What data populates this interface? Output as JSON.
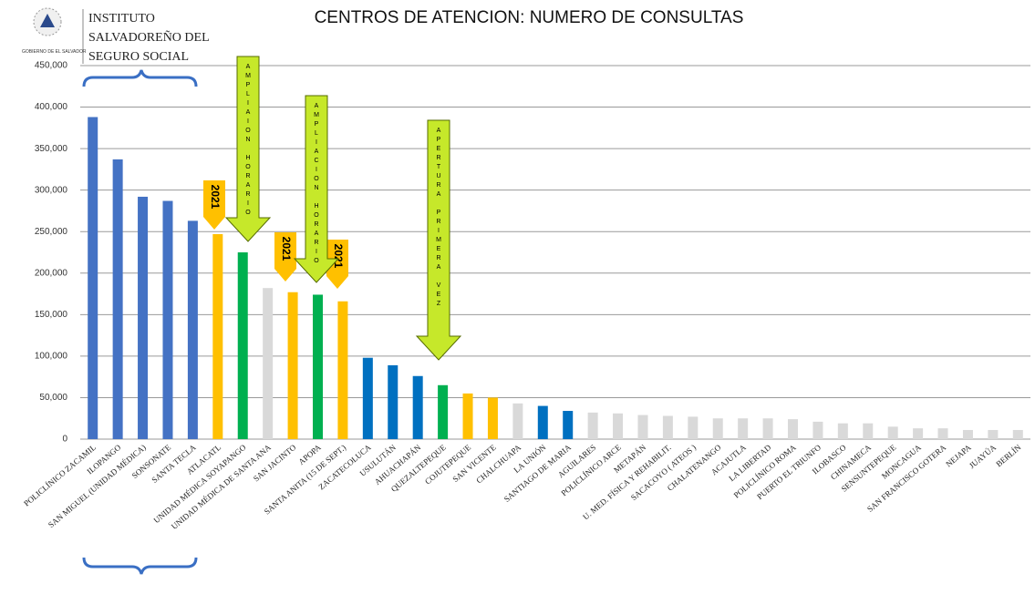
{
  "chart_data": {
    "type": "bar",
    "title": "CENTROS DE ATENCION: NUMERO DE CONSULTAS",
    "header": [
      "INSTITUTO",
      "SALVADOREÑO DEL",
      "SEGURO SOCIAL"
    ],
    "logo_caption": "GOBIERNO DE EL SALVADOR",
    "categories": [
      "POLICLÍNICO  ZACAMIL",
      "ILOPANGO",
      "SAN MIGUEL (UNIDAD MÉDICA)",
      "SONSONATE",
      "SANTA TECLA",
      "ATLACATL",
      "UNIDAD MÉDICA SOYAPANGO",
      "UNIDAD MÉDICA DE SANTA ANA",
      "SAN JACINTO",
      "APOPA",
      "SANTA ANITA (15 DE SEPT.)",
      "ZACATECOLUCA",
      "USULUTÁN",
      "AHUACHAPÁN",
      "QUEZALTEPEQUE",
      "COJUTEPEQUE",
      "SAN VICENTE",
      "CHALCHUAPA",
      "LA UNIÓN",
      "SANTIAGO DE MARIA",
      "AGUILARES",
      "POLICLÍNICO ARCE",
      "METAPÁN",
      "U. MED. FÍSICA Y REHABILIT.",
      "SACACOYO ( ATEOS )",
      "CHALATENANGO",
      "ACAJUTLA",
      "LA LIBERTAD",
      "POLICLÍNICO ROMA",
      "PUERTO EL TRIUNFO",
      "ILOBASCO",
      "CHINAMECA",
      "SENSUNTEPEQUE",
      "MONCAGUA",
      "SAN FRANCISCO GOTERA",
      "NEJAPA",
      "JUAYÚA",
      "BERLÍN"
    ],
    "values": [
      388000,
      337000,
      292000,
      287000,
      263000,
      247000,
      225000,
      182000,
      177000,
      174000,
      166000,
      98000,
      89000,
      76000,
      65000,
      55000,
      50000,
      43000,
      40000,
      34000,
      32000,
      31000,
      29000,
      28000,
      27000,
      25000,
      25000,
      25000,
      24000,
      21000,
      19000,
      19000,
      15000,
      13000,
      13000,
      11000,
      11000,
      11000
    ],
    "colors": [
      "#4472c4",
      "#4472c4",
      "#4472c4",
      "#4472c4",
      "#4472c4",
      "#ffc000",
      "#00b050",
      "#d9d9d9",
      "#ffc000",
      "#00b050",
      "#ffc000",
      "#0070c0",
      "#0070c0",
      "#0070c0",
      "#00b050",
      "#ffc000",
      "#ffc000",
      "#d9d9d9",
      "#0070c0",
      "#0070c0",
      "#d9d9d9",
      "#d9d9d9",
      "#d9d9d9",
      "#d9d9d9",
      "#d9d9d9",
      "#d9d9d9",
      "#d9d9d9",
      "#d9d9d9",
      "#d9d9d9",
      "#d9d9d9",
      "#d9d9d9",
      "#d9d9d9",
      "#d9d9d9",
      "#d9d9d9",
      "#d9d9d9",
      "#d9d9d9",
      "#d9d9d9",
      "#d9d9d9"
    ],
    "ylim": [
      0,
      450000
    ],
    "yticks": [
      0,
      {
        "value": 50000,
        "label": "50,000"
      },
      {
        "value": 100000,
        "label": "100,000"
      },
      {
        "value": 150000,
        "label": "150,000"
      },
      {
        "value": 200000,
        "label": "200,000"
      },
      {
        "value": 250000,
        "label": "250,000"
      },
      {
        "value": 300000,
        "label": "300,000"
      },
      {
        "value": 350000,
        "label": "350,000"
      },
      {
        "value": 400000,
        "label": "400,000"
      },
      {
        "value": 450000,
        "label": "450,000"
      }
    ],
    "grid": true,
    "annotations": [
      {
        "kind": "tag",
        "text": "2021"
      },
      {
        "kind": "tag",
        "text": "2021"
      },
      {
        "kind": "tag",
        "text": "2021"
      },
      {
        "kind": "arrow",
        "text": "AMPLIAION HORARIO"
      },
      {
        "kind": "arrow",
        "text": "AMPLIACION HORARIO"
      },
      {
        "kind": "arrow",
        "text": "APERTURA PRIMERA VEZ"
      }
    ]
  }
}
